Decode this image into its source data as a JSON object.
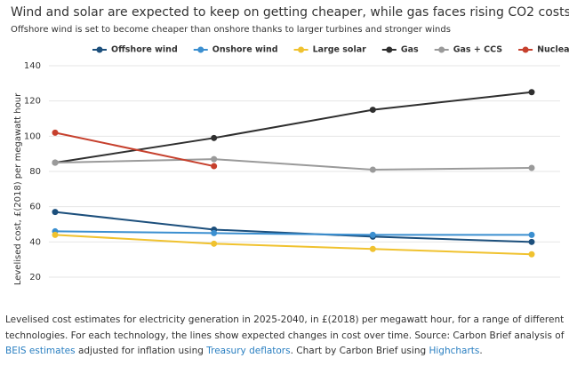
{
  "chart_data": {
    "type": "line",
    "title": "Wind and solar are expected to keep on getting cheaper, while gas faces rising CO2 costs",
    "subtitle": "Offshore wind is set to become cheaper than onshore thanks to larger turbines and stronger winds",
    "y_label": "Levelised cost, £(2018) per megawatt hour",
    "categories": [
      null,
      null,
      null,
      null
    ],
    "series": [
      {
        "name": "Offshore wind",
        "color": "#1c4f7c",
        "values": [
          57,
          47,
          43,
          40
        ]
      },
      {
        "name": "Onshore wind",
        "color": "#3b8fd0",
        "values": [
          46,
          45,
          44,
          44
        ]
      },
      {
        "name": "Large solar",
        "color": "#f0c22f",
        "values": [
          44,
          39,
          36,
          33
        ]
      },
      {
        "name": "Gas",
        "color": "#2f2f2f",
        "values": [
          85,
          99,
          115,
          125
        ]
      },
      {
        "name": "Gas + CCS",
        "color": "#9a9a9a",
        "values": [
          85,
          87,
          81,
          82
        ]
      },
      {
        "name": "Nuclear",
        "color": "#c6402d",
        "values": [
          102,
          83,
          null,
          null
        ]
      }
    ],
    "ylim": [
      20,
      140
    ],
    "yticks": [
      20,
      40,
      60,
      80,
      100,
      120,
      140
    ],
    "grid": true
  },
  "caption": [
    {
      "text": "Levelised cost estimates for electricity generation in 2025-2040, in £(2018) per megawatt hour, for a range of different technologies. For each technology, the lines show expected changes in cost over time. Source: Carbon Brief analysis of "
    },
    {
      "text": "BEIS estimates",
      "link": true
    },
    {
      "text": " adjusted for inflation using "
    },
    {
      "text": "Treasury deflators",
      "link": true
    },
    {
      "text": ". Chart by Carbon Brief using "
    },
    {
      "text": "Highcharts",
      "link": true
    },
    {
      "text": "."
    }
  ]
}
